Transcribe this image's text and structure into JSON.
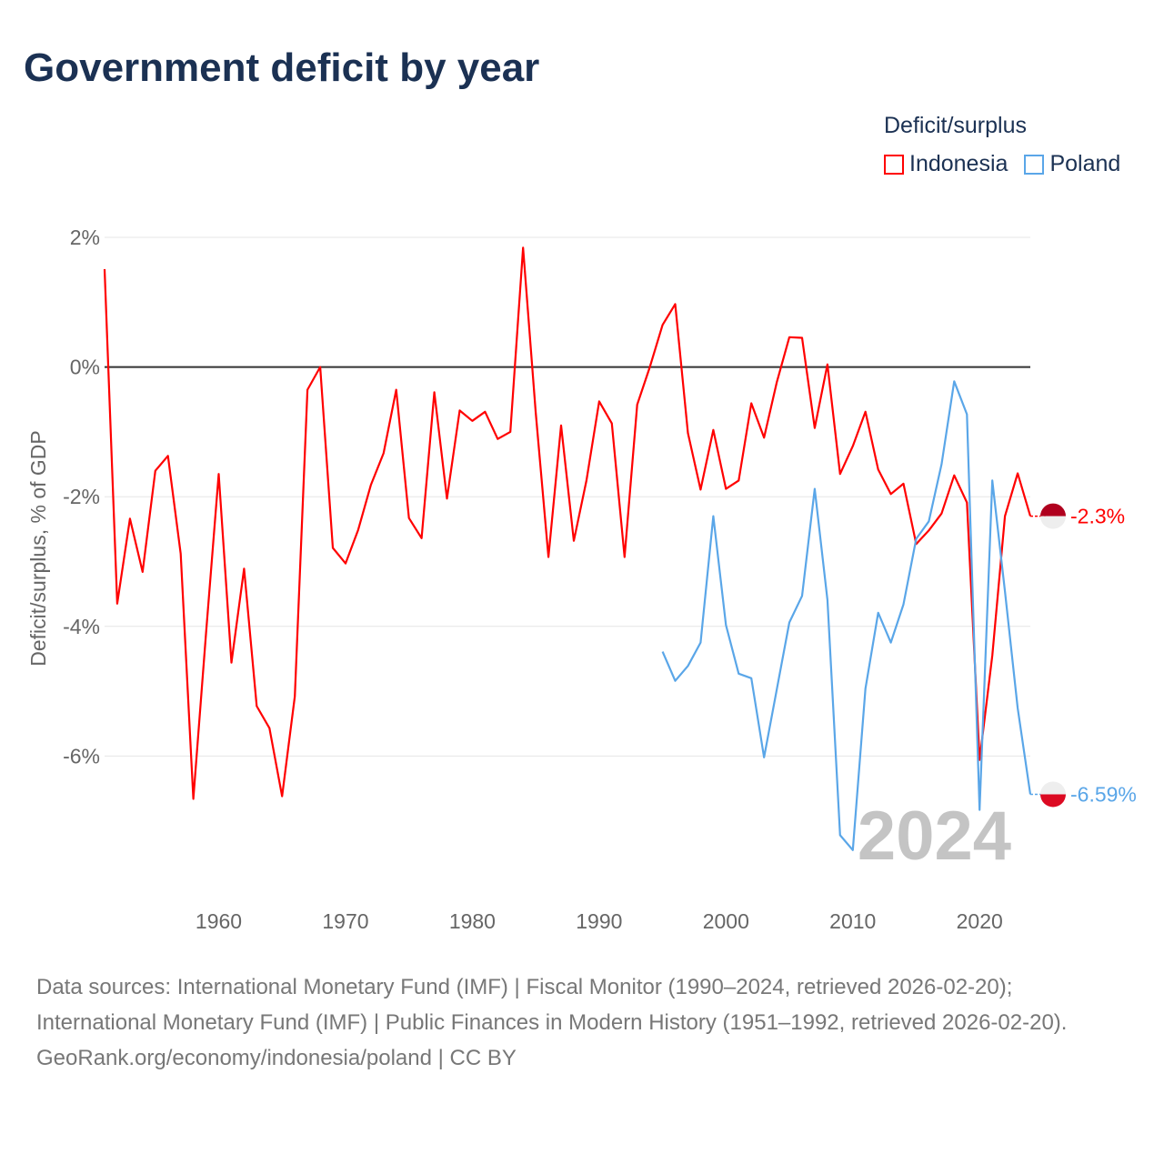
{
  "title": "Government deficit by year",
  "legend": {
    "title": "Deficit/surplus",
    "items": [
      {
        "name": "Indonesia",
        "color": "#ff0000"
      },
      {
        "name": "Poland",
        "color": "#5aa6e8"
      }
    ]
  },
  "footer": {
    "sources": "Data sources: International Monetary Fund (IMF) | Fiscal Monitor (1990–2024, retrieved 2026-02-20); International Monetary Fund (IMF) | Public Finances in Modern History (1951–1992, retrieved 2026-02-20).",
    "credit": "GeoRank.org/economy/indonesia/poland | CC BY"
  },
  "chart_data": {
    "type": "line",
    "title": "Government deficit by year",
    "ylabel": "Deficit/surplus, % of GDP",
    "xlabel": "",
    "xlim": [
      1951,
      2024
    ],
    "ylim": [
      -8.0,
      2.0
    ],
    "yticks": [
      2,
      0,
      -2,
      -4,
      -6
    ],
    "ytick_labels": [
      "2%",
      "0%",
      "-2%",
      "-4%",
      "-6%"
    ],
    "xticks": [
      1960,
      1970,
      1980,
      1990,
      2000,
      2010,
      2020
    ],
    "xtick_labels": [
      "1960",
      "1970",
      "1980",
      "1990",
      "2000",
      "2010",
      "2020"
    ],
    "year_watermark": "2024",
    "series": [
      {
        "name": "Indonesia",
        "color": "#ff0000",
        "end_label": "-2.3%",
        "x_start": 1951,
        "values": [
          1.51,
          -3.65,
          -2.34,
          -3.16,
          -1.6,
          -1.37,
          -2.88,
          -6.66,
          -4.1,
          -1.65,
          -4.56,
          -3.11,
          -5.23,
          -5.57,
          -6.62,
          -5.08,
          -0.35,
          0.0,
          -2.79,
          -3.03,
          -2.51,
          -1.82,
          -1.33,
          -0.35,
          -2.33,
          -2.64,
          -0.39,
          -2.03,
          -0.67,
          -0.83,
          -0.69,
          -1.11,
          -1.0,
          1.84,
          -0.7,
          -2.93,
          -0.9,
          -2.68,
          -1.75,
          -0.53,
          -0.87,
          -2.93,
          -0.58,
          0.0,
          0.65,
          0.97,
          -1.02,
          -1.89,
          -0.97,
          -1.88,
          -1.75,
          -0.56,
          -1.09,
          -0.24,
          0.46,
          0.45,
          -0.94,
          0.04,
          -1.65,
          -1.22,
          -0.69,
          -1.58,
          -1.96,
          -1.8,
          -2.73,
          -2.52,
          -2.26,
          -1.67,
          -2.09,
          -6.06,
          -4.45,
          -2.3,
          -1.64,
          -2.3
        ]
      },
      {
        "name": "Poland",
        "color": "#5aa6e8",
        "end_label": "-6.59%",
        "x_start": 1995,
        "values": [
          -4.39,
          -4.84,
          -4.61,
          -4.25,
          -2.3,
          -3.98,
          -4.73,
          -4.8,
          -6.02,
          -4.98,
          -3.94,
          -3.53,
          -1.88,
          -3.59,
          -7.22,
          -7.45,
          -4.96,
          -3.79,
          -4.25,
          -3.66,
          -2.65,
          -2.38,
          -1.5,
          -0.22,
          -0.73,
          -6.83,
          -1.75,
          -3.46,
          -5.26,
          -6.59
        ]
      }
    ]
  }
}
